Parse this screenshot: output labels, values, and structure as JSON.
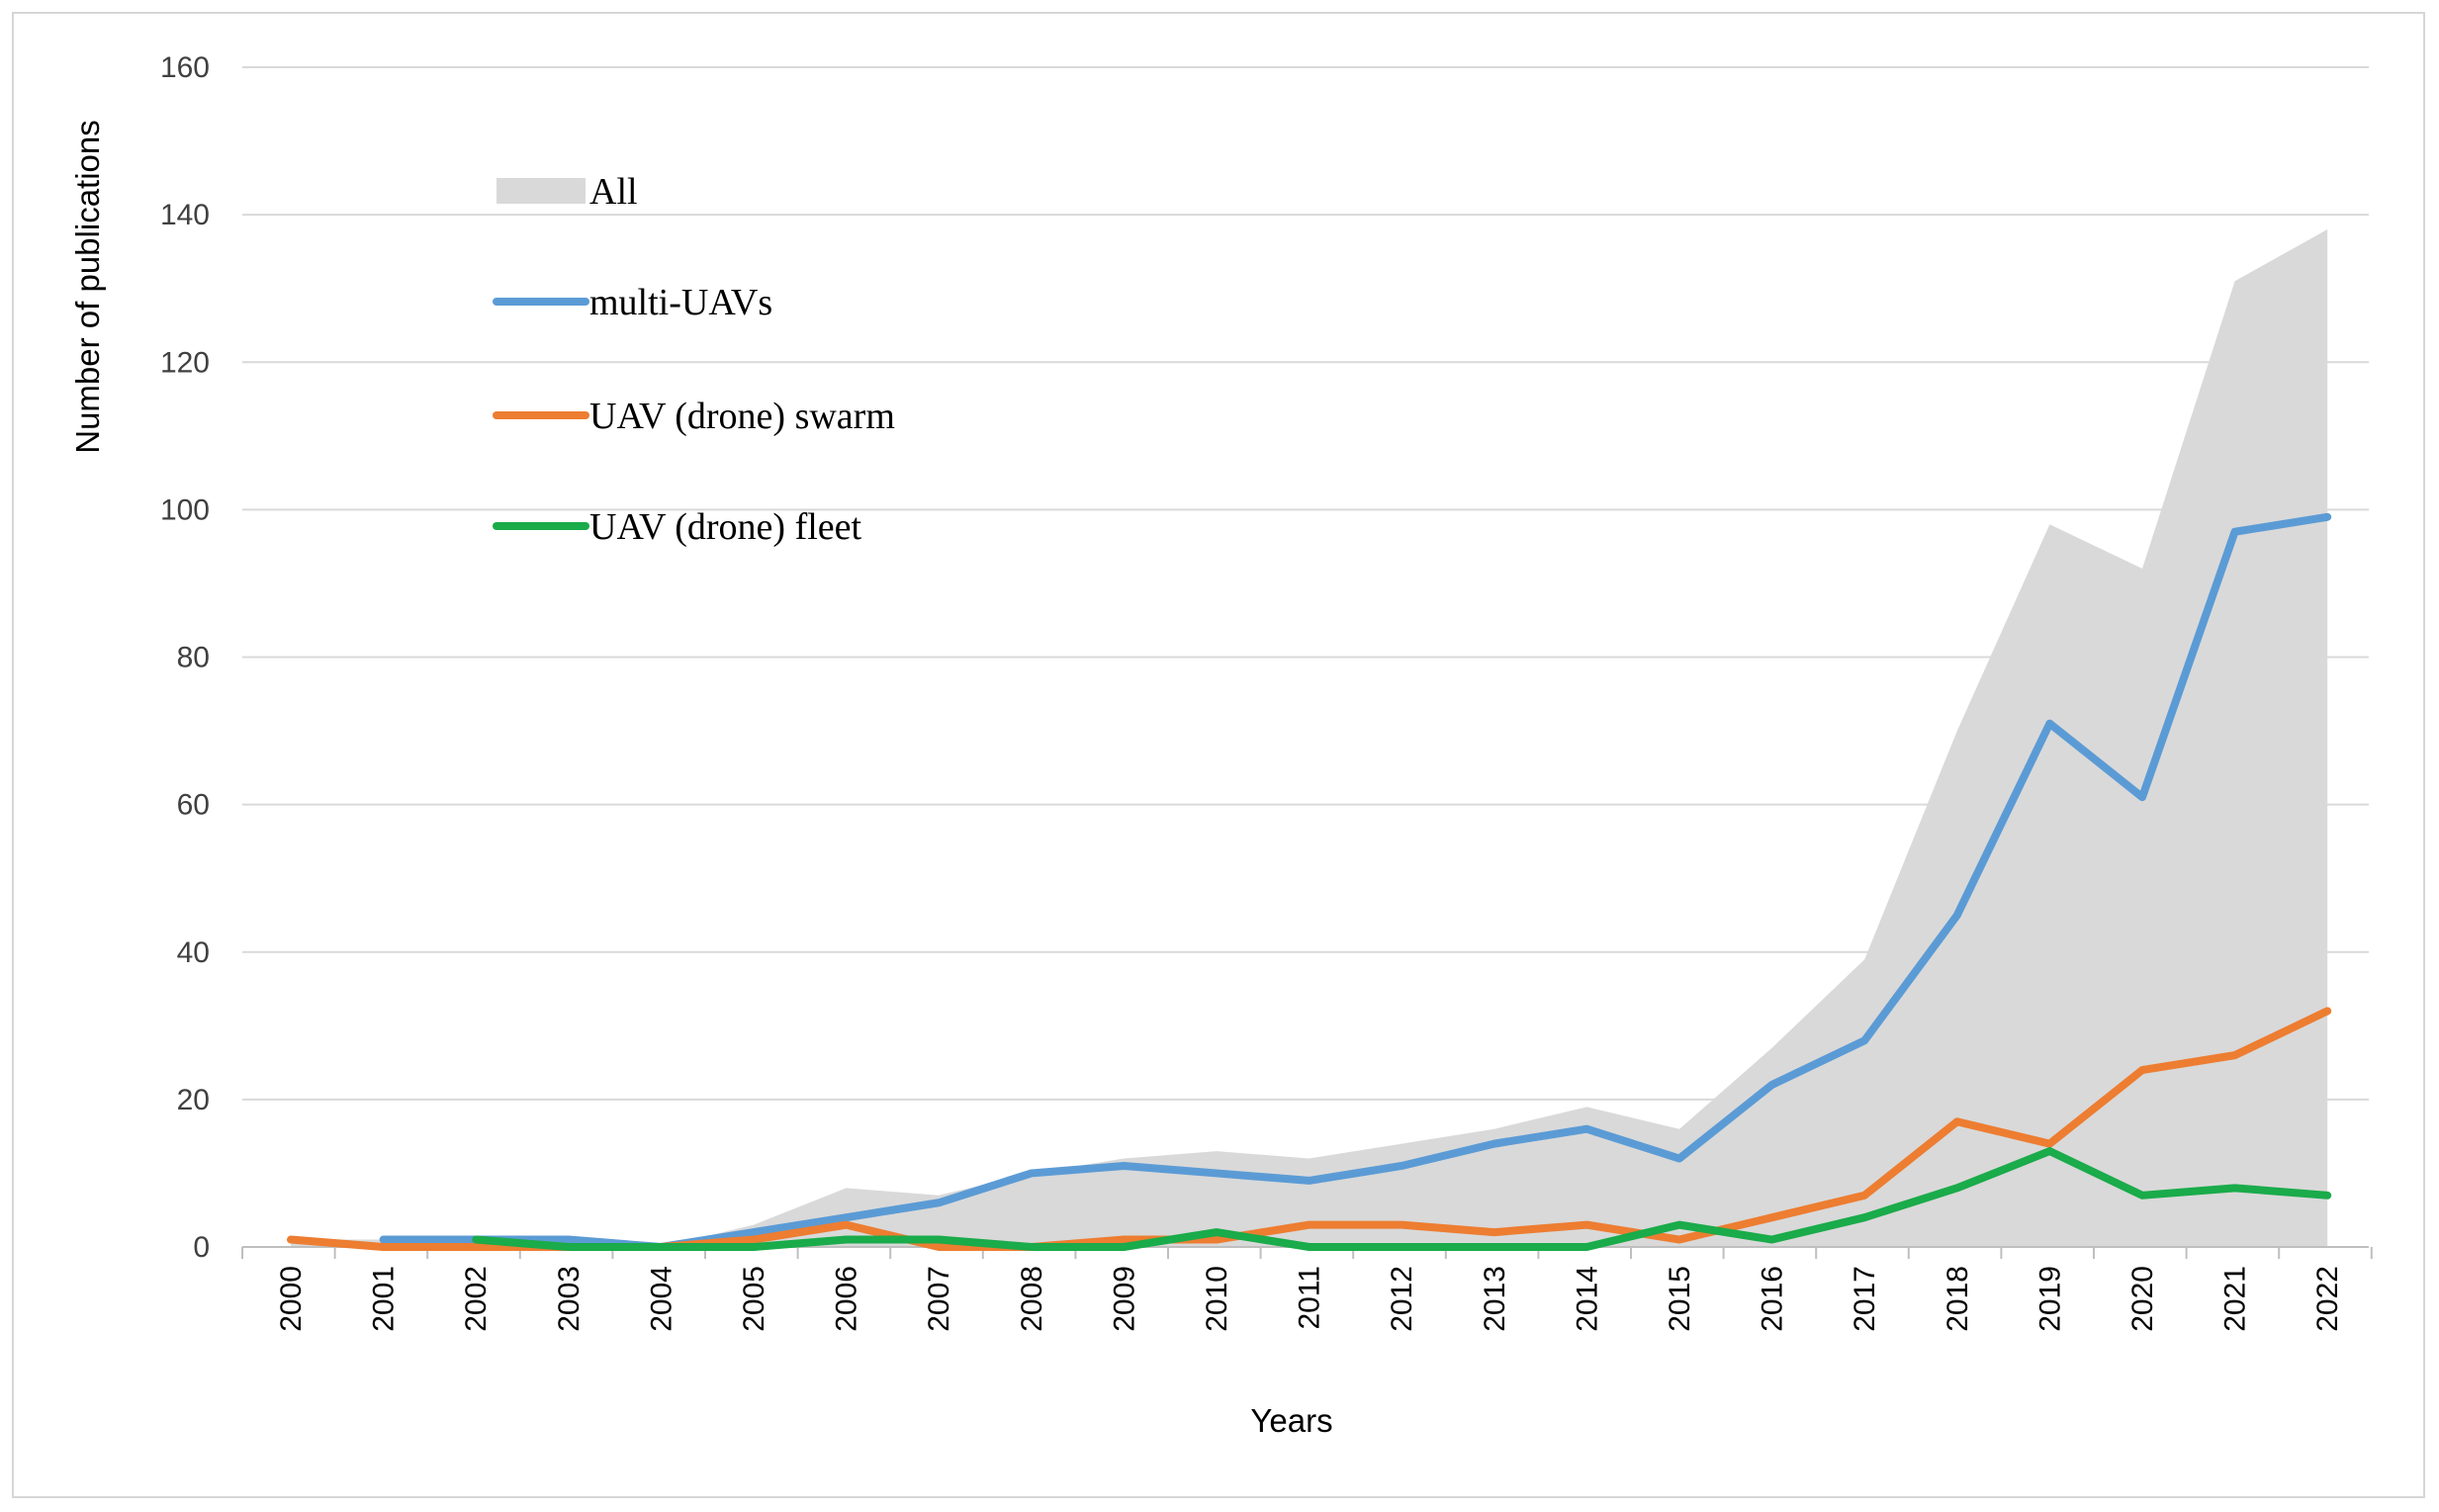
{
  "chart_data": {
    "type": "line",
    "title": "",
    "xlabel": "Years",
    "ylabel": "Number of publications",
    "ylim": [
      0,
      160
    ],
    "yticks": [
      0,
      20,
      40,
      60,
      80,
      100,
      120,
      140,
      160
    ],
    "grid": true,
    "legend_position": "top-left",
    "categories": [
      "2000",
      "2001",
      "2002",
      "2003",
      "2004",
      "2005",
      "2006",
      "2007",
      "2008",
      "2009",
      "2010",
      "2011",
      "2012",
      "2013",
      "2014",
      "2015",
      "2016",
      "2017",
      "2018",
      "2019",
      "2020",
      "2021",
      "2022"
    ],
    "series": [
      {
        "name": "All",
        "kind": "area",
        "color": "#d9d9d9",
        "values": [
          1,
          1,
          1,
          1,
          0,
          3,
          8,
          7,
          10,
          12,
          13,
          12,
          14,
          16,
          19,
          16,
          27,
          39,
          70,
          98,
          92,
          131,
          138
        ]
      },
      {
        "name": "multi-UAVs",
        "kind": "line",
        "color": "#5b9bd5",
        "values": [
          null,
          1,
          1,
          1,
          0,
          2,
          4,
          6,
          10,
          11,
          10,
          9,
          11,
          14,
          16,
          12,
          22,
          28,
          45,
          71,
          61,
          97,
          99
        ]
      },
      {
        "name": "UAV (drone) swarm",
        "kind": "line",
        "color": "#ed7d31",
        "values": [
          1,
          0,
          0,
          0,
          0,
          1,
          3,
          0,
          0,
          1,
          1,
          3,
          3,
          2,
          3,
          1,
          4,
          7,
          17,
          14,
          24,
          26,
          32
        ]
      },
      {
        "name": "UAV (drone) fleet",
        "kind": "line",
        "color": "#1aab4a",
        "values": [
          null,
          null,
          1,
          0,
          0,
          0,
          1,
          1,
          0,
          0,
          2,
          0,
          0,
          0,
          0,
          3,
          1,
          4,
          8,
          13,
          7,
          8,
          7
        ]
      }
    ]
  },
  "colors": {
    "grid": "#d9d9d9",
    "axis": "#bfbfbf",
    "frame": "#d6d6d6"
  }
}
